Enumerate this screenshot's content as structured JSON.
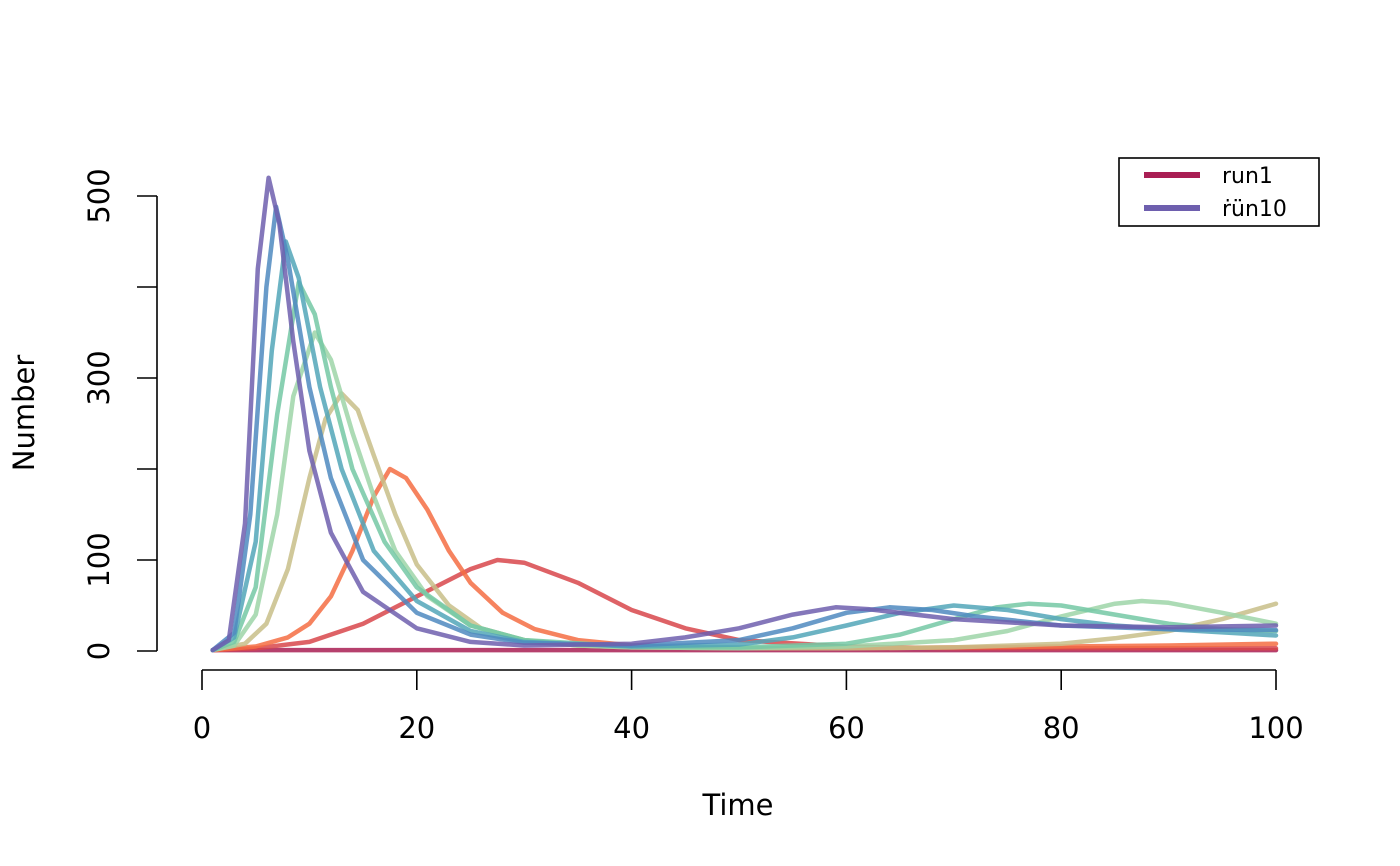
{
  "chart_data": {
    "type": "line",
    "title": "",
    "xlabel": "Time",
    "ylabel": "Number",
    "xlim": [
      1,
      100
    ],
    "ylim": [
      0,
      520
    ],
    "x_ticks": [
      0,
      20,
      40,
      60,
      80,
      100
    ],
    "y_ticks": [
      0,
      100,
      200,
      300,
      400,
      500
    ],
    "y_tick_labels_shown": [
      "0",
      "100",
      "300",
      "500"
    ],
    "grid": false,
    "legend": {
      "placement": "top-right",
      "entries": [
        {
          "label": "run1",
          "color": "#A91E54"
        },
        {
          "label": "ṙün10",
          "color": "#6E5FAE"
        }
      ]
    },
    "series": [
      {
        "color": "#A91E54",
        "x": [
          1,
          10,
          20,
          30,
          40,
          50,
          60,
          70,
          80,
          90,
          100
        ],
        "y": [
          1,
          1,
          1,
          1,
          1,
          1,
          1,
          1,
          1,
          1,
          1
        ]
      },
      {
        "color": "#D8464B",
        "x": [
          1,
          5,
          10,
          15,
          20,
          25,
          27.5,
          30,
          35,
          40,
          45,
          50,
          60,
          70,
          80,
          90,
          100
        ],
        "y": [
          1,
          3,
          10,
          30,
          60,
          90,
          100,
          97,
          75,
          45,
          25,
          12,
          5,
          3,
          3,
          3,
          3
        ]
      },
      {
        "color": "#F46D43",
        "x": [
          1,
          5,
          8,
          10,
          12,
          14,
          16,
          17.5,
          19,
          21,
          23,
          25,
          28,
          31,
          35,
          40,
          45,
          50,
          60,
          70,
          80,
          90,
          100
        ],
        "y": [
          1,
          5,
          15,
          30,
          60,
          110,
          170,
          200,
          190,
          155,
          110,
          75,
          42,
          24,
          12,
          6,
          4,
          3,
          3,
          4,
          5,
          6,
          8
        ]
      },
      {
        "color": "#C8BE88",
        "x": [
          1,
          4,
          6,
          8,
          10,
          11.5,
          13,
          14.5,
          16,
          18,
          20,
          23,
          26,
          30,
          35,
          40,
          50,
          60,
          70,
          80,
          85,
          90,
          95,
          100
        ],
        "y": [
          1,
          8,
          30,
          90,
          190,
          255,
          283,
          265,
          215,
          150,
          95,
          50,
          25,
          12,
          6,
          4,
          3,
          3,
          4,
          8,
          14,
          22,
          35,
          52
        ]
      },
      {
        "color": "#9ED5A8",
        "x": [
          1,
          3,
          5,
          7,
          8.5,
          10.5,
          12,
          14,
          16,
          18,
          21,
          25,
          30,
          35,
          40,
          50,
          60,
          70,
          75,
          80,
          85,
          87.5,
          90,
          95,
          100
        ],
        "y": [
          1,
          6,
          40,
          150,
          280,
          350,
          320,
          240,
          170,
          110,
          60,
          28,
          12,
          6,
          4,
          3,
          5,
          12,
          22,
          38,
          52,
          55,
          53,
          42,
          30
        ]
      },
      {
        "color": "#74C8A4",
        "x": [
          1,
          3,
          5,
          7,
          9,
          10.5,
          12,
          14,
          17,
          20,
          25,
          30,
          40,
          50,
          60,
          65,
          70,
          74,
          77,
          80,
          85,
          90,
          95,
          100
        ],
        "y": [
          1,
          10,
          70,
          260,
          405,
          370,
          290,
          200,
          120,
          70,
          28,
          12,
          5,
          4,
          8,
          18,
          35,
          48,
          52,
          50,
          40,
          30,
          24,
          22
        ]
      },
      {
        "color": "#52A6B9",
        "x": [
          1,
          3,
          5,
          6.5,
          7.8,
          9,
          11,
          13,
          16,
          20,
          25,
          30,
          40,
          50,
          55,
          60,
          65,
          70,
          75,
          80,
          85,
          90,
          100
        ],
        "y": [
          1,
          15,
          120,
          330,
          450,
          410,
          290,
          200,
          110,
          55,
          22,
          10,
          5,
          7,
          15,
          28,
          42,
          50,
          45,
          35,
          28,
          24,
          17
        ]
      },
      {
        "color": "#4F8AC0",
        "x": [
          1,
          3,
          4.5,
          6,
          6.9,
          8,
          10,
          12,
          15,
          20,
          25,
          30,
          40,
          50,
          55,
          60,
          64,
          68,
          72,
          80,
          90,
          100
        ],
        "y": [
          1,
          20,
          150,
          400,
          488,
          430,
          290,
          190,
          100,
          42,
          18,
          9,
          6,
          12,
          25,
          42,
          48,
          45,
          38,
          28,
          24,
          23
        ]
      },
      {
        "color": "#6E5FAE",
        "x": [
          1,
          2.5,
          4,
          5.2,
          6.2,
          7.2,
          8.5,
          10,
          12,
          15,
          20,
          25,
          30,
          40,
          45,
          50,
          55,
          59,
          62,
          70,
          80,
          90,
          100
        ],
        "y": [
          1,
          12,
          140,
          420,
          520,
          470,
          340,
          220,
          130,
          65,
          25,
          10,
          6,
          8,
          15,
          25,
          40,
          48,
          46,
          35,
          28,
          26,
          28
        ]
      }
    ]
  }
}
